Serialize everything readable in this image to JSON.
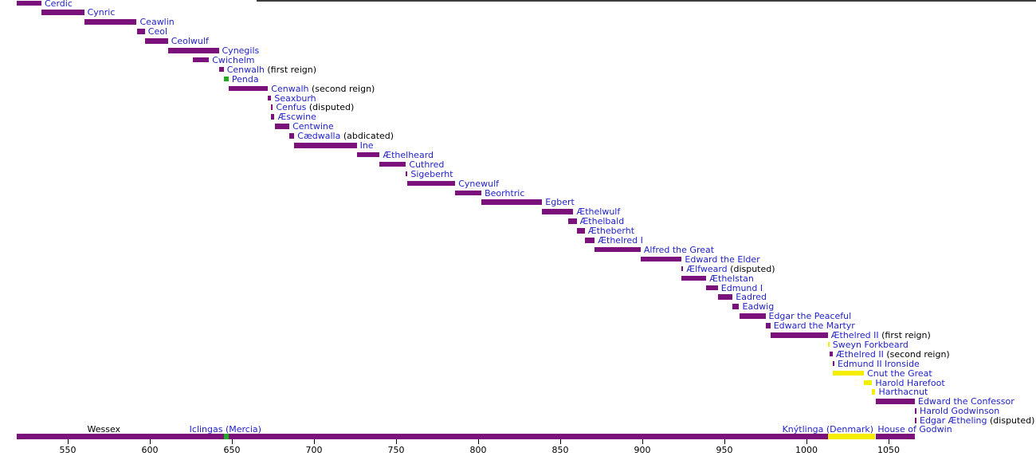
{
  "chart_data": {
    "type": "timeline",
    "x_axis": {
      "tick_years": [
        550,
        600,
        650,
        700,
        750,
        800,
        850,
        900,
        950,
        1000,
        1050
      ],
      "year_start": 519,
      "year_end": 1066
    },
    "colors": {
      "wessex": "#7b127b",
      "mercia": "#22aa22",
      "denmark": "#f5ee00",
      "godwin": "#7b127b",
      "link_text": "#2222cc",
      "note_text": "#000000"
    },
    "reigns": [
      {
        "name": "Cerdic",
        "start": 519,
        "end": 534,
        "house": "wessex"
      },
      {
        "name": "Cynric",
        "start": 534,
        "end": 560,
        "house": "wessex"
      },
      {
        "name": "Ceawlin",
        "start": 560,
        "end": 592,
        "house": "wessex"
      },
      {
        "name": "Ceol",
        "start": 592,
        "end": 597,
        "house": "wessex"
      },
      {
        "name": "Ceolwulf",
        "start": 597,
        "end": 611,
        "house": "wessex"
      },
      {
        "name": "Cynegils",
        "start": 611,
        "end": 642,
        "house": "wessex"
      },
      {
        "name": "Cwichelm",
        "start": 626,
        "end": 636,
        "house": "wessex"
      },
      {
        "name": "Cenwalh",
        "note": "(first reign)",
        "start": 642,
        "end": 645,
        "house": "wessex"
      },
      {
        "name": "Penda",
        "start": 645,
        "end": 648,
        "house": "mercia"
      },
      {
        "name": "Cenwalh",
        "note": "(second reign)",
        "start": 648,
        "end": 672,
        "house": "wessex"
      },
      {
        "name": "Seaxburh",
        "start": 672,
        "end": 674,
        "house": "wessex"
      },
      {
        "name": "Cenfus",
        "note": "(disputed)",
        "start": 674,
        "end": 674,
        "house": "wessex"
      },
      {
        "name": "Æscwine",
        "start": 674,
        "end": 676,
        "house": "wessex"
      },
      {
        "name": "Centwine",
        "start": 676,
        "end": 685,
        "house": "wessex"
      },
      {
        "name": "Cædwalla",
        "note": "(abdicated)",
        "start": 685,
        "end": 688,
        "house": "wessex"
      },
      {
        "name": "Ine",
        "start": 688,
        "end": 726,
        "house": "wessex"
      },
      {
        "name": "Æthelheard",
        "start": 726,
        "end": 740,
        "house": "wessex"
      },
      {
        "name": "Cuthred",
        "start": 740,
        "end": 756,
        "house": "wessex"
      },
      {
        "name": "Sigeberht",
        "start": 756,
        "end": 757,
        "house": "wessex"
      },
      {
        "name": "Cynewulf",
        "start": 757,
        "end": 786,
        "house": "wessex"
      },
      {
        "name": "Beorhtric",
        "start": 786,
        "end": 802,
        "house": "wessex"
      },
      {
        "name": "Egbert",
        "start": 802,
        "end": 839,
        "house": "wessex"
      },
      {
        "name": "Æthelwulf",
        "start": 839,
        "end": 858,
        "house": "wessex"
      },
      {
        "name": "Æthelbald",
        "start": 855,
        "end": 860,
        "house": "wessex"
      },
      {
        "name": "Ætheberht",
        "start": 860,
        "end": 865,
        "house": "wessex"
      },
      {
        "name": "Æthelred I",
        "start": 865,
        "end": 871,
        "house": "wessex"
      },
      {
        "name": "Alfred the Great",
        "start": 871,
        "end": 899,
        "house": "wessex"
      },
      {
        "name": "Edward the Elder",
        "start": 899,
        "end": 924,
        "house": "wessex"
      },
      {
        "name": "Ælfweard",
        "note": "(disputed)",
        "start": 924,
        "end": 924,
        "house": "wessex"
      },
      {
        "name": "Æthelstan",
        "start": 924,
        "end": 939,
        "house": "wessex"
      },
      {
        "name": "Edmund I",
        "start": 939,
        "end": 946,
        "house": "wessex"
      },
      {
        "name": "Eadred",
        "start": 946,
        "end": 955,
        "house": "wessex"
      },
      {
        "name": "Eadwig",
        "start": 955,
        "end": 959,
        "house": "wessex"
      },
      {
        "name": "Edgar the Peaceful",
        "start": 959,
        "end": 975,
        "house": "wessex"
      },
      {
        "name": "Edward the Martyr",
        "start": 975,
        "end": 978,
        "house": "wessex"
      },
      {
        "name": "Æthelred II",
        "note": "(first reign)",
        "start": 978,
        "end": 1013,
        "house": "wessex"
      },
      {
        "name": "Sweyn Forkbeard",
        "start": 1013,
        "end": 1014,
        "house": "denmark"
      },
      {
        "name": "Æthelred II",
        "note": "(second reign)",
        "start": 1014,
        "end": 1016,
        "house": "wessex"
      },
      {
        "name": "Edmund II Ironside",
        "start": 1016,
        "end": 1016,
        "house": "wessex"
      },
      {
        "name": "Cnut the Great",
        "start": 1016,
        "end": 1035,
        "house": "denmark"
      },
      {
        "name": "Harold Harefoot",
        "start": 1035,
        "end": 1040,
        "house": "denmark"
      },
      {
        "name": "Harthacnut",
        "start": 1040,
        "end": 1042,
        "house": "denmark"
      },
      {
        "name": "Edward the Confessor",
        "start": 1042,
        "end": 1066,
        "house": "wessex"
      },
      {
        "name": "Harold Godwinson",
        "start": 1066,
        "end": 1066,
        "house": "godwin"
      },
      {
        "name": "Edgar Ætheling",
        "note": "(disputed)",
        "start": 1066,
        "end": 1066,
        "house": "wessex"
      }
    ],
    "houses_bar": {
      "segments": [
        {
          "house": "wessex",
          "start": 519,
          "end": 1013
        },
        {
          "house": "denmark",
          "start": 1013,
          "end": 1042
        },
        {
          "house": "wessex",
          "start": 1042,
          "end": 1066
        },
        {
          "house": "mercia",
          "start": 645,
          "end": 648,
          "overlay": true
        }
      ],
      "labels": [
        {
          "text": "Wessex",
          "center_year": 572,
          "link": false
        },
        {
          "text": "Iclingas (Mercia)",
          "center_year": 646,
          "link": true
        },
        {
          "text": "Knýtlinga (Denmark)",
          "center_year": 1013,
          "link": true
        },
        {
          "text": "House of Godwin",
          "center_year": 1066,
          "link": true
        }
      ]
    }
  }
}
